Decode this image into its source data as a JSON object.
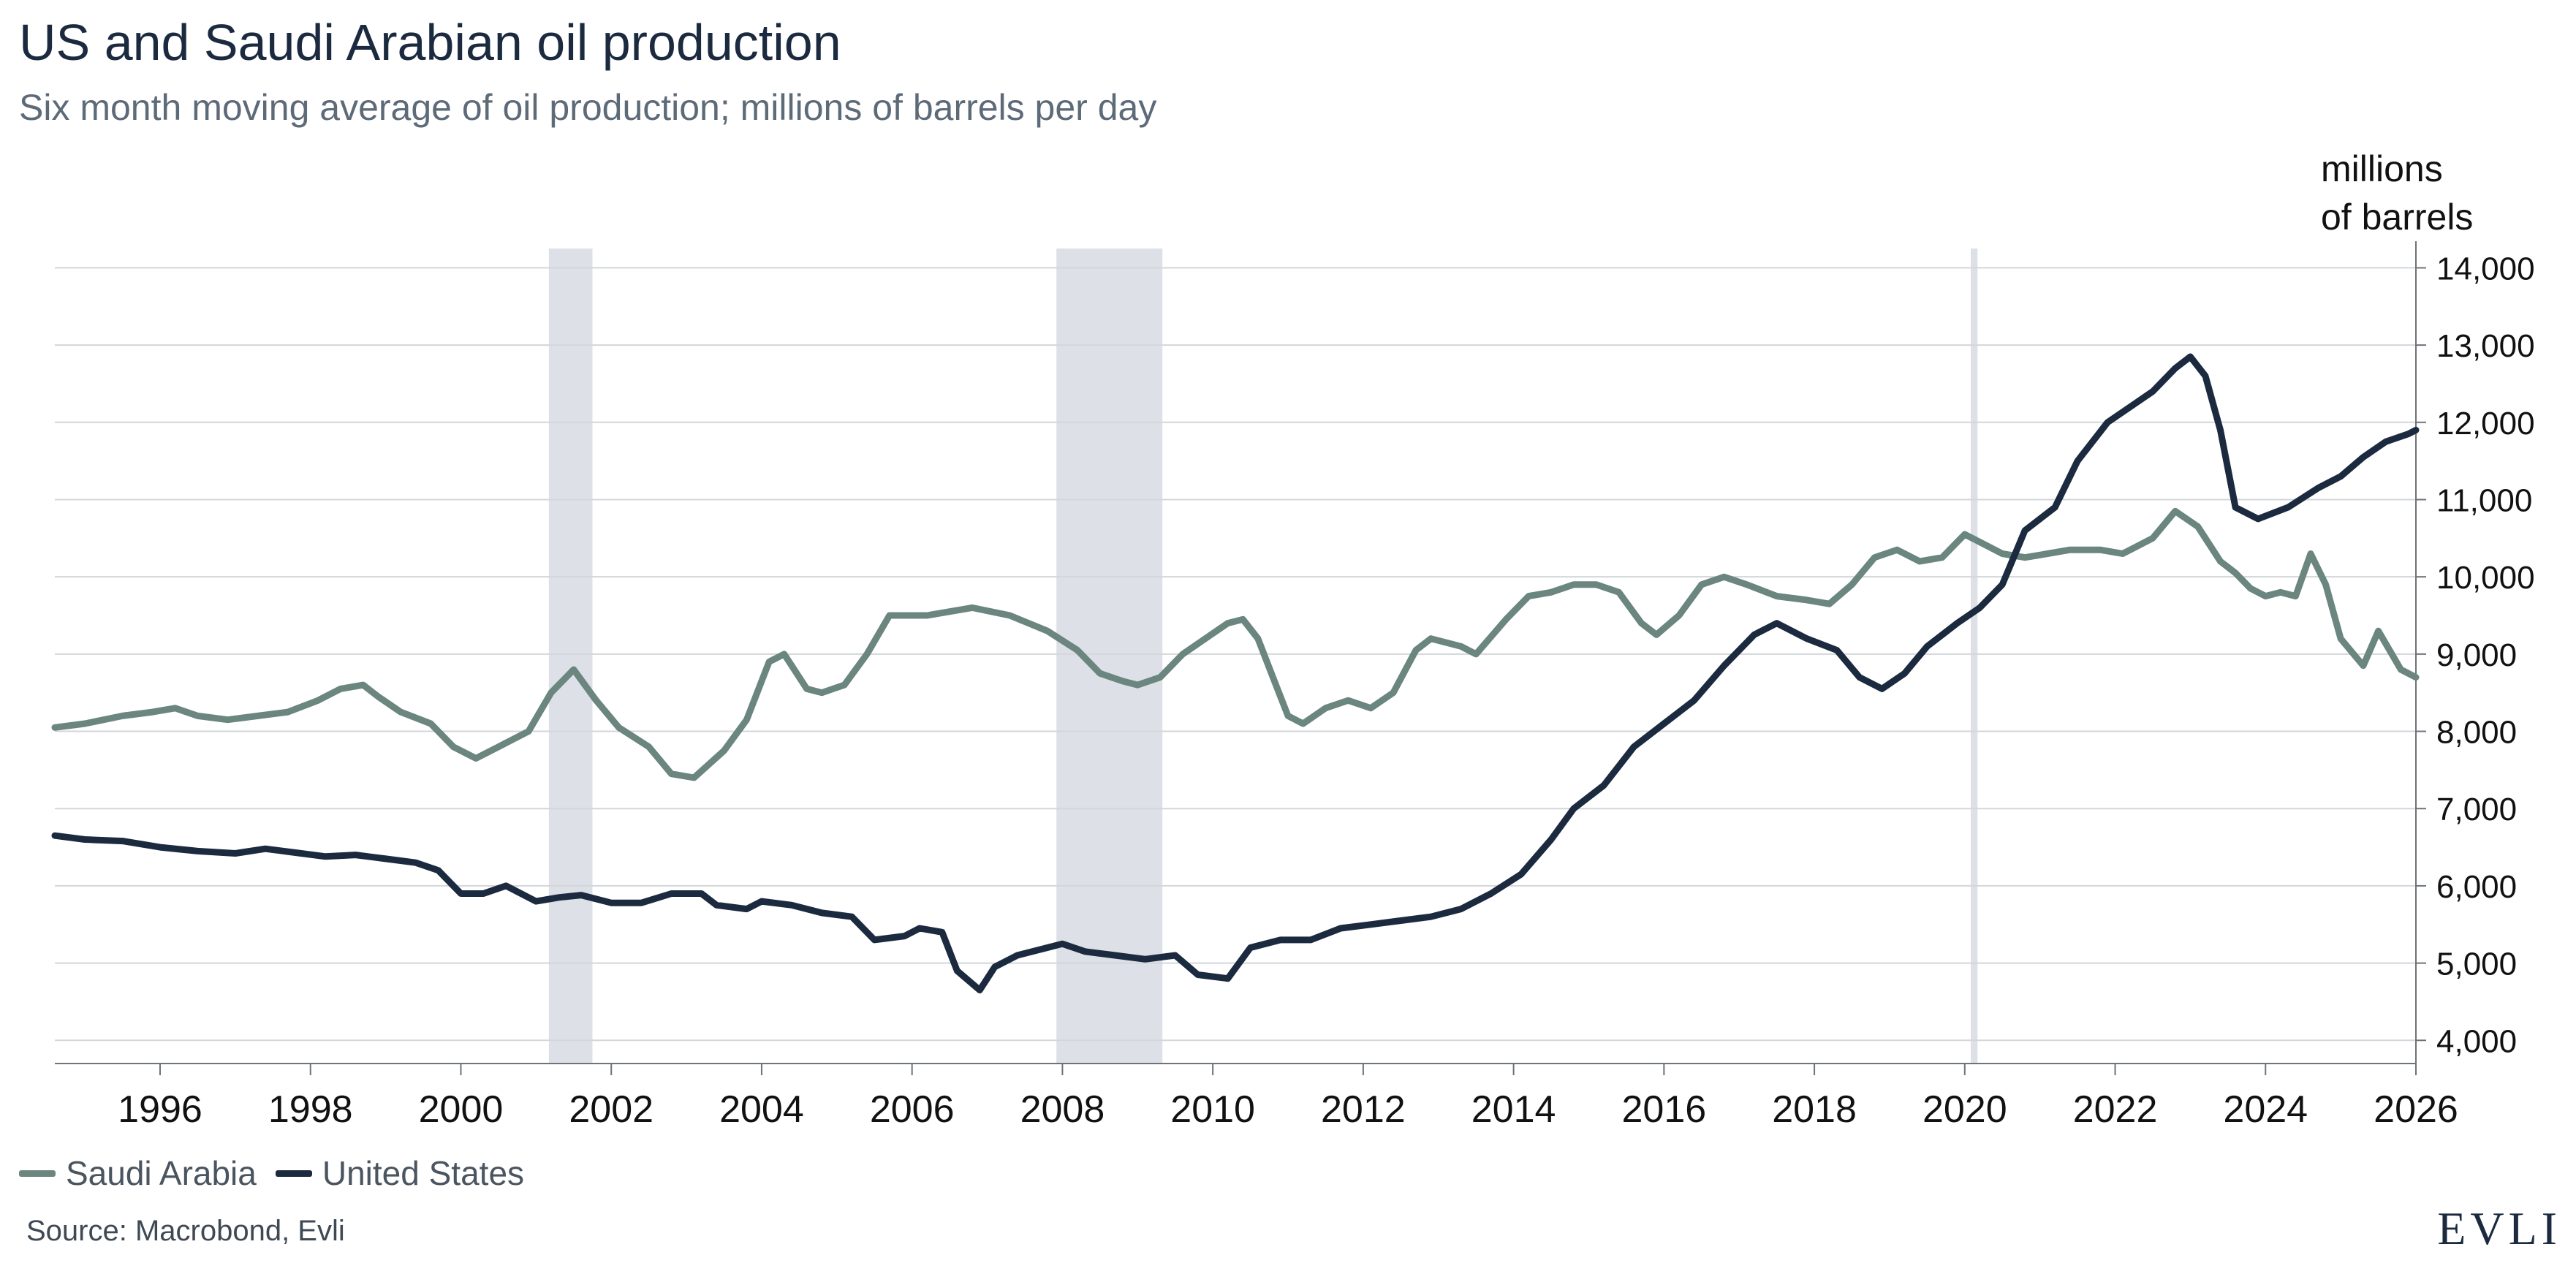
{
  "chart_data": {
    "type": "line",
    "title": "US and Saudi Arabian oil production",
    "subtitle": "Six month moving average of oil production; millions of barrels per day",
    "y_unit_label": [
      "millions",
      "of barrels"
    ],
    "ylim": [
      4000,
      14000
    ],
    "y_ticks": [
      4000,
      5000,
      6000,
      7000,
      8000,
      9000,
      10000,
      11000,
      12000,
      13000,
      14000
    ],
    "y_tick_labels": [
      "4,000",
      "5,000",
      "6,000",
      "7,000",
      "8,000",
      "9,000",
      "10,000",
      "11,000",
      "12,000",
      "13,000",
      "14,000"
    ],
    "xlim": [
      1994.6,
      2026
    ],
    "x_ticks": [
      1996,
      1998,
      2000,
      2002,
      2004,
      2006,
      2008,
      2010,
      2012,
      2014,
      2016,
      2018,
      2020,
      2022,
      2024,
      2026
    ],
    "x_tick_labels": [
      "1996",
      "1998",
      "2000",
      "2002",
      "2004",
      "2006",
      "2008",
      "2010",
      "2012",
      "2014",
      "2016",
      "2018",
      "2020",
      "2022",
      "2024",
      "2026"
    ],
    "grid": "horizontal",
    "legend_position": "bottom-left",
    "recessions": [
      {
        "start": 2001.17,
        "end": 2001.75
      },
      {
        "start": 2007.92,
        "end": 2009.33
      },
      {
        "start": 2020.08,
        "end": 2020.17
      }
    ],
    "series": [
      {
        "name": "Saudi Arabia",
        "color": "#6b857f",
        "points": [
          [
            1994.6,
            8050
          ],
          [
            1995.0,
            8100
          ],
          [
            1995.5,
            8200
          ],
          [
            1995.9,
            8250
          ],
          [
            1996.2,
            8300
          ],
          [
            1996.5,
            8200
          ],
          [
            1996.9,
            8150
          ],
          [
            1997.3,
            8200
          ],
          [
            1997.7,
            8250
          ],
          [
            1998.1,
            8400
          ],
          [
            1998.4,
            8550
          ],
          [
            1998.7,
            8600
          ],
          [
            1998.9,
            8450
          ],
          [
            1999.2,
            8250
          ],
          [
            1999.6,
            8100
          ],
          [
            1999.9,
            7800
          ],
          [
            2000.2,
            7650
          ],
          [
            2000.5,
            7800
          ],
          [
            2000.9,
            8000
          ],
          [
            2001.2,
            8500
          ],
          [
            2001.5,
            8800
          ],
          [
            2001.8,
            8400
          ],
          [
            2002.1,
            8050
          ],
          [
            2002.5,
            7800
          ],
          [
            2002.8,
            7450
          ],
          [
            2003.1,
            7400
          ],
          [
            2003.5,
            7750
          ],
          [
            2003.8,
            8150
          ],
          [
            2004.1,
            8900
          ],
          [
            2004.3,
            9000
          ],
          [
            2004.6,
            8550
          ],
          [
            2004.8,
            8500
          ],
          [
            2005.1,
            8600
          ],
          [
            2005.4,
            9000
          ],
          [
            2005.7,
            9500
          ],
          [
            2006.2,
            9500
          ],
          [
            2006.8,
            9600
          ],
          [
            2007.3,
            9500
          ],
          [
            2007.8,
            9300
          ],
          [
            2008.2,
            9050
          ],
          [
            2008.5,
            8750
          ],
          [
            2008.8,
            8650
          ],
          [
            2009.0,
            8600
          ],
          [
            2009.3,
            8700
          ],
          [
            2009.6,
            9000
          ],
          [
            2009.9,
            9200
          ],
          [
            2010.2,
            9400
          ],
          [
            2010.4,
            9450
          ],
          [
            2010.6,
            9200
          ],
          [
            2010.8,
            8700
          ],
          [
            2011.0,
            8200
          ],
          [
            2011.2,
            8100
          ],
          [
            2011.5,
            8300
          ],
          [
            2011.8,
            8400
          ],
          [
            2012.1,
            8300
          ],
          [
            2012.4,
            8500
          ],
          [
            2012.7,
            9050
          ],
          [
            2012.9,
            9200
          ],
          [
            2013.3,
            9100
          ],
          [
            2013.5,
            9000
          ],
          [
            2013.9,
            9450
          ],
          [
            2014.2,
            9750
          ],
          [
            2014.5,
            9800
          ],
          [
            2014.8,
            9900
          ],
          [
            2015.1,
            9900
          ],
          [
            2015.4,
            9800
          ],
          [
            2015.7,
            9400
          ],
          [
            2015.9,
            9250
          ],
          [
            2016.2,
            9500
          ],
          [
            2016.5,
            9900
          ],
          [
            2016.8,
            10000
          ],
          [
            2017.1,
            9900
          ],
          [
            2017.5,
            9750
          ],
          [
            2017.9,
            9700
          ],
          [
            2018.2,
            9650
          ],
          [
            2018.5,
            9900
          ],
          [
            2018.8,
            10250
          ],
          [
            2019.1,
            10350
          ],
          [
            2019.4,
            10200
          ],
          [
            2019.7,
            10250
          ],
          [
            2020.0,
            10550
          ],
          [
            2020.3,
            10400
          ],
          [
            2020.5,
            10300
          ],
          [
            2020.8,
            10250
          ],
          [
            2021.1,
            10300
          ],
          [
            2021.4,
            10350
          ],
          [
            2021.8,
            10350
          ],
          [
            2022.1,
            10300
          ],
          [
            2022.5,
            10500
          ],
          [
            2022.8,
            10850
          ],
          [
            2023.1,
            10650
          ],
          [
            2023.4,
            10200
          ],
          [
            2023.6,
            10050
          ],
          [
            2023.8,
            9850
          ],
          [
            2024.0,
            9750
          ],
          [
            2024.2,
            9800
          ],
          [
            2024.4,
            9750
          ],
          [
            2024.6,
            10300
          ],
          [
            2024.8,
            9900
          ],
          [
            2025.0,
            9200
          ],
          [
            2025.3,
            8850
          ],
          [
            2025.5,
            9300
          ],
          [
            2025.8,
            8800
          ],
          [
            2026.0,
            8700
          ]
        ]
      },
      {
        "name": "United States",
        "color": "#1b2a3f",
        "points": [
          [
            1994.6,
            6650
          ],
          [
            1995.0,
            6600
          ],
          [
            1995.5,
            6580
          ],
          [
            1996.0,
            6500
          ],
          [
            1996.5,
            6450
          ],
          [
            1997.0,
            6420
          ],
          [
            1997.4,
            6480
          ],
          [
            1997.8,
            6430
          ],
          [
            1998.2,
            6380
          ],
          [
            1998.6,
            6400
          ],
          [
            1999.0,
            6350
          ],
          [
            1999.4,
            6300
          ],
          [
            1999.7,
            6200
          ],
          [
            2000.0,
            5900
          ],
          [
            2000.3,
            5900
          ],
          [
            2000.6,
            6000
          ],
          [
            2001.0,
            5800
          ],
          [
            2001.3,
            5850
          ],
          [
            2001.6,
            5880
          ],
          [
            2002.0,
            5780
          ],
          [
            2002.4,
            5780
          ],
          [
            2002.8,
            5900
          ],
          [
            2003.2,
            5900
          ],
          [
            2003.4,
            5750
          ],
          [
            2003.8,
            5700
          ],
          [
            2004.0,
            5800
          ],
          [
            2004.4,
            5750
          ],
          [
            2004.8,
            5650
          ],
          [
            2005.2,
            5600
          ],
          [
            2005.5,
            5300
          ],
          [
            2005.9,
            5350
          ],
          [
            2006.1,
            5450
          ],
          [
            2006.4,
            5400
          ],
          [
            2006.6,
            4900
          ],
          [
            2006.9,
            4650
          ],
          [
            2007.1,
            4950
          ],
          [
            2007.4,
            5100
          ],
          [
            2007.8,
            5200
          ],
          [
            2008.0,
            5250
          ],
          [
            2008.3,
            5150
          ],
          [
            2008.7,
            5100
          ],
          [
            2009.1,
            5050
          ],
          [
            2009.5,
            5100
          ],
          [
            2009.8,
            4850
          ],
          [
            2010.2,
            4800
          ],
          [
            2010.5,
            5200
          ],
          [
            2010.9,
            5300
          ],
          [
            2011.3,
            5300
          ],
          [
            2011.7,
            5450
          ],
          [
            2012.1,
            5500
          ],
          [
            2012.5,
            5550
          ],
          [
            2012.9,
            5600
          ],
          [
            2013.3,
            5700
          ],
          [
            2013.7,
            5900
          ],
          [
            2014.1,
            6150
          ],
          [
            2014.5,
            6600
          ],
          [
            2014.8,
            7000
          ],
          [
            2015.2,
            7300
          ],
          [
            2015.6,
            7800
          ],
          [
            2016.0,
            8100
          ],
          [
            2016.4,
            8400
          ],
          [
            2016.8,
            8850
          ],
          [
            2017.2,
            9250
          ],
          [
            2017.5,
            9400
          ],
          [
            2017.9,
            9200
          ],
          [
            2018.3,
            9050
          ],
          [
            2018.6,
            8700
          ],
          [
            2018.9,
            8550
          ],
          [
            2019.2,
            8750
          ],
          [
            2019.5,
            9100
          ],
          [
            2019.9,
            9400
          ],
          [
            2020.2,
            9600
          ],
          [
            2020.5,
            9900
          ],
          [
            2020.8,
            10600
          ],
          [
            2021.2,
            10900
          ],
          [
            2021.5,
            11500
          ],
          [
            2021.9,
            12000
          ],
          [
            2022.2,
            12200
          ],
          [
            2022.5,
            12400
          ],
          [
            2022.8,
            12700
          ],
          [
            2023.0,
            12850
          ],
          [
            2023.2,
            12600
          ],
          [
            2023.4,
            11900
          ],
          [
            2023.6,
            10900
          ],
          [
            2023.9,
            10750
          ],
          [
            2024.3,
            10900
          ],
          [
            2024.7,
            11150
          ],
          [
            2025.0,
            11300
          ],
          [
            2025.3,
            11550
          ],
          [
            2025.6,
            11750
          ],
          [
            2025.9,
            11850
          ],
          [
            2026.0,
            11900
          ]
        ]
      }
    ]
  },
  "legend": {
    "items": [
      {
        "label": "Saudi Arabia",
        "color": "#6b857f"
      },
      {
        "label": "United States",
        "color": "#1b2a3f"
      }
    ]
  },
  "footer": {
    "source": "Source: Macrobond, Evli",
    "logo_text": "EVLI"
  }
}
